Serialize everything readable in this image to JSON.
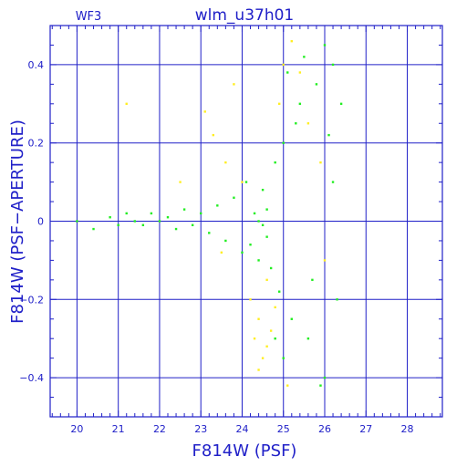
{
  "chart_data": {
    "type": "scatter",
    "title": "wlm_u37h01",
    "chip_label": "WF3",
    "xlabel": "F814W (PSF)",
    "ylabel": "F814W (PSF−APERTURE)",
    "xlim": [
      19.35,
      28.85
    ],
    "ylim": [
      -0.5,
      0.5
    ],
    "x_ticks": [
      20,
      21,
      22,
      23,
      24,
      25,
      26,
      27,
      28
    ],
    "x_tick_labels": [
      "20",
      "21",
      "22",
      "23",
      "24",
      "25",
      "26",
      "27",
      "28"
    ],
    "y_ticks": [
      -0.4,
      -0.2,
      0,
      0.2,
      0.4
    ],
    "y_tick_labels": [
      "−0.4",
      "−0.2",
      "0",
      "0.2",
      "0.4"
    ],
    "grid": true,
    "colors": {
      "axis": "#2020c8",
      "grid": "#2020c8",
      "primary_points": "#22ee22",
      "secondary_points": "#ffee22",
      "background": "#ffffff"
    },
    "series": [
      {
        "role": "primary",
        "color": "#22ee22",
        "x": [
          20.0,
          20.4,
          20.8,
          21.0,
          21.2,
          21.4,
          21.6,
          21.8,
          22.0,
          22.2,
          22.4,
          22.6,
          22.8,
          23.0,
          23.2,
          23.4,
          23.6,
          23.8,
          24.0,
          24.1,
          24.2,
          24.3,
          24.4,
          24.5,
          24.6,
          24.7,
          24.8,
          24.9,
          25.0,
          25.2,
          25.4,
          25.6,
          25.8,
          26.0,
          26.2,
          26.4,
          24.4,
          24.5,
          24.6,
          25.0,
          25.5,
          26.0,
          26.3,
          25.3,
          25.7,
          26.2,
          24.8,
          25.1,
          25.9,
          26.1
        ],
        "y": [
          0.0,
          -0.02,
          0.01,
          -0.01,
          0.02,
          0.0,
          -0.01,
          0.02,
          0.0,
          0.01,
          -0.02,
          0.03,
          -0.01,
          0.02,
          -0.03,
          0.04,
          -0.05,
          0.06,
          -0.08,
          0.1,
          -0.06,
          0.02,
          0.0,
          -0.01,
          0.03,
          -0.12,
          0.15,
          -0.18,
          0.2,
          -0.25,
          0.3,
          -0.3,
          0.35,
          -0.4,
          0.4,
          0.3,
          -0.1,
          0.08,
          -0.04,
          -0.35,
          0.42,
          0.45,
          -0.2,
          0.25,
          -0.15,
          0.1,
          -0.3,
          0.38,
          -0.42,
          0.22
        ]
      },
      {
        "role": "secondary",
        "color": "#ffee22",
        "x": [
          21.2,
          22.5,
          23.1,
          23.3,
          23.6,
          23.8,
          24.0,
          24.2,
          24.3,
          24.4,
          24.5,
          24.6,
          24.7,
          24.8,
          25.0,
          25.2,
          25.4,
          25.6,
          25.9,
          26.0,
          24.4,
          24.6,
          23.5,
          25.1,
          24.9
        ],
        "y": [
          0.3,
          0.1,
          0.28,
          0.22,
          0.15,
          0.35,
          0.1,
          -0.2,
          -0.3,
          -0.25,
          -0.35,
          -0.32,
          -0.28,
          -0.22,
          0.4,
          0.46,
          0.38,
          0.25,
          0.15,
          -0.1,
          -0.38,
          -0.15,
          -0.08,
          -0.42,
          0.3
        ]
      }
    ]
  }
}
